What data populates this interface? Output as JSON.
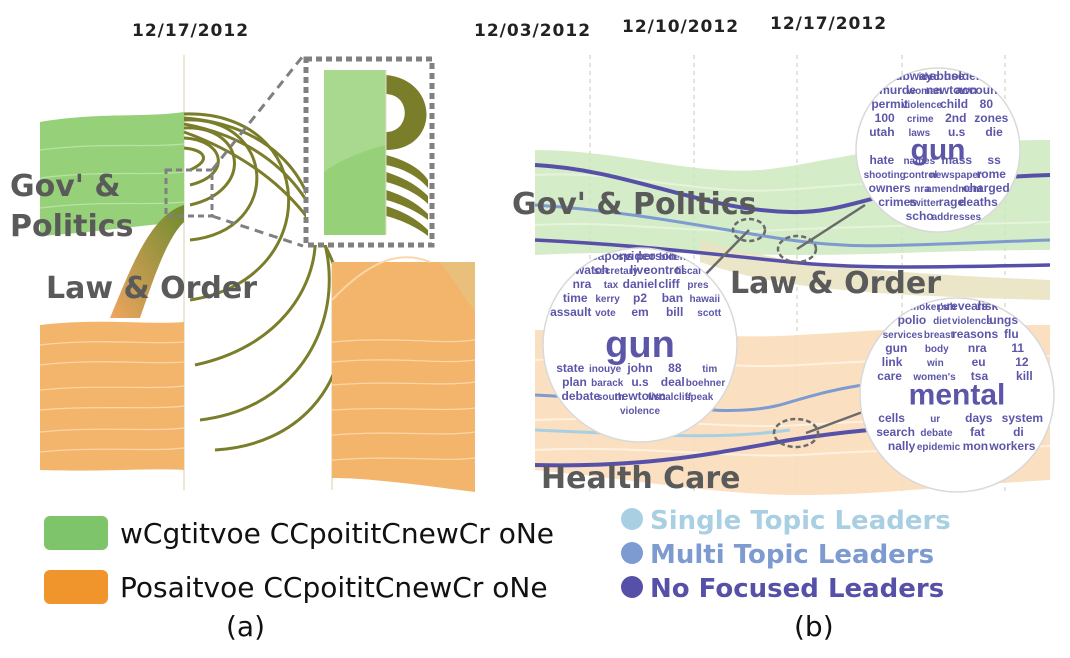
{
  "panel_a": {
    "date": "12/17/2012",
    "label_politics_1": "Gov' &",
    "label_politics_2": "Politics",
    "label_law": "Law & Order",
    "caption": "(a)"
  },
  "panel_b": {
    "dates": [
      "12/03/2012",
      "12/10/2012",
      "12/17/2012"
    ],
    "label_politics": "Gov' & Politics",
    "label_law": "Law & Order",
    "label_health": "Health Care",
    "caption": "(b)",
    "cloud_top": {
      "big": "gun",
      "words": [
        "subway",
        "ideo",
        "abuse",
        "holders",
        "murde",
        "woman",
        "newtown",
        "account",
        "permit",
        "violence",
        "child",
        "80",
        "100",
        "crime",
        "2nd",
        "zones",
        "utah",
        "laws",
        "u.s",
        "die",
        "hate",
        "names",
        "mass",
        "ss",
        "shooting",
        "control",
        "newspaper",
        "rome",
        "owners",
        "nra",
        "amendment",
        "charged",
        "crimes",
        "twitter",
        "rage",
        "deaths",
        "scho",
        "addresses"
      ]
    },
    "cloud_left": {
      "big": "gun",
      "words": [
        "weapons",
        "sp",
        "video",
        "person",
        "biden",
        "watch",
        "secretary",
        "live",
        "control",
        "fiscal",
        "nra",
        "tax",
        "daniel",
        "cliff",
        "pres",
        "time",
        "kerry",
        "p2",
        "ban",
        "hawaii",
        "assault",
        "vote",
        "em",
        "bill",
        "scott",
        "state",
        "inouye",
        "john",
        "88",
        "tim",
        "plan",
        "barack",
        "u.s",
        "deal",
        "boehner",
        "debate",
        "south",
        "newtown",
        "fiscalcliff",
        "speak",
        "violence"
      ]
    },
    "cloud_bottom": {
      "big": "mental",
      "words": [
        "smoker's",
        "pub",
        "reveals",
        "risk",
        "polio",
        "diet",
        "violence",
        "lungs",
        "services",
        "breast",
        "reasons",
        "flu",
        "gun",
        "body",
        "nra",
        "11",
        "link",
        "win",
        "eu",
        "12",
        "care",
        "women's",
        "tsa",
        "kill",
        "cells",
        "ur",
        "days",
        "system",
        "search",
        "debate",
        "fat",
        "di",
        "nally",
        "epidemic",
        "mon",
        "workers"
      ]
    }
  },
  "legend": {
    "items": [
      {
        "label": "wCgtitvoe CCpoititCnewCr oNe",
        "color": "#7dc46a"
      },
      {
        "label": "Posaitvoe CCpoititCnewCr oNe",
        "color": "#f0952b"
      }
    ],
    "leaders": [
      {
        "label": "Single Topic Leaders",
        "color": "#a9cfe3"
      },
      {
        "label": "Multi Topic Leaders",
        "color": "#7d9bd0"
      },
      {
        "label": "No Focused Leaders",
        "color": "#5650a8"
      }
    ]
  }
}
